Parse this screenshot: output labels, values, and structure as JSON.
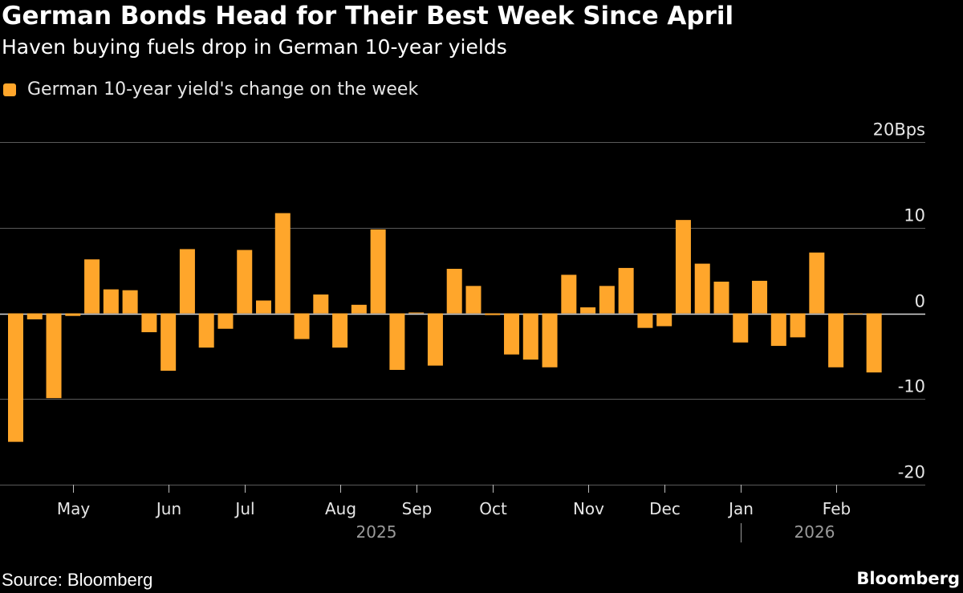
{
  "header": {
    "title": "German Bonds Head for Their Best Week Since April",
    "subtitle": "Haven buying fuels drop in German 10-year yields"
  },
  "legend": {
    "label": "German 10-year yield's change on the week"
  },
  "footer": {
    "source": "Source: Bloomberg",
    "brand": "Bloomberg"
  },
  "colors": {
    "bar": "#ffa62b",
    "background": "#000000",
    "grid": "#5a5a5a",
    "text": "#ffffff",
    "axis_text": "#e6e6e6",
    "year_text": "#9a9a9a"
  },
  "chart_data": {
    "type": "bar",
    "title": "German Bonds Head for Their Best Week Since April",
    "subtitle": "Haven buying fuels drop in German 10-year yields",
    "xlabel": "",
    "ylabel": "Bps",
    "ylim": [
      -20,
      20
    ],
    "yticks": [
      20,
      10,
      0,
      -10,
      -20
    ],
    "ytick_labels": [
      "20Bps",
      "10",
      "0",
      "-10",
      "-20"
    ],
    "grid": true,
    "legend_position": "top-left",
    "series": [
      {
        "name": "German 10-year yield's change on the week",
        "values": [
          -15.0,
          -0.7,
          -9.9,
          -0.3,
          6.3,
          2.8,
          2.7,
          -2.2,
          -6.7,
          7.5,
          -4.0,
          -1.8,
          7.4,
          1.5,
          11.7,
          -3.0,
          2.2,
          -4.0,
          1.0,
          9.8,
          -6.6,
          0.1,
          -6.1,
          5.2,
          3.2,
          -0.2,
          -4.8,
          -5.4,
          -6.3,
          4.5,
          0.7,
          3.2,
          5.3,
          -1.7,
          -1.5,
          10.9,
          5.8,
          3.7,
          -3.4,
          3.8,
          -3.8,
          -2.8,
          7.1,
          -6.3,
          -0.1,
          -6.9
        ]
      }
    ],
    "x_month_labels": [
      "May",
      "Jun",
      "Jul",
      "Aug",
      "Sep",
      "Oct",
      "Nov",
      "Dec",
      "Jan",
      "Feb"
    ],
    "x_month_start_index": [
      3.5,
      8.5,
      12.5,
      17.5,
      21.5,
      25.5,
      30.5,
      34.5,
      38.5,
      43.5
    ],
    "x_year_labels": [
      "2025",
      "2026"
    ],
    "year_divider_index": 38.5
  }
}
